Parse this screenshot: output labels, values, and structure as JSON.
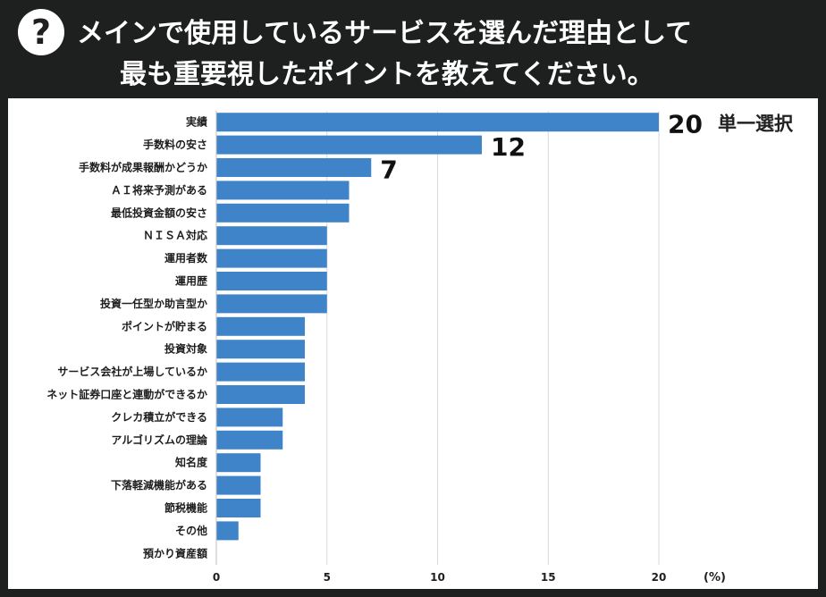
{
  "header": {
    "icon": "question-mark-icon",
    "icon_glyph": "?",
    "title_line1": "メインで使用しているサービスを選んだ理由として",
    "title_line2": "最も重要視したポイントを教えてください。"
  },
  "chart_data": {
    "type": "bar",
    "orientation": "horizontal",
    "categories": [
      "実績",
      "手数料の安さ",
      "手数料が成果報酬かどうか",
      "ＡＩ将来予測がある",
      "最低投資金額の安さ",
      "ＮＩＳＡ対応",
      "運用者数",
      "運用歴",
      "投資一任型か助言型か",
      "ポイントが貯まる",
      "投資対象",
      "サービス会社が上場しているか",
      "ネット証券口座と連動ができるか",
      "クレカ積立ができる",
      "アルゴリズムの理論",
      "知名度",
      "下落軽減機能がある",
      "節税機能",
      "その他",
      "預かり資産額"
    ],
    "values": [
      20,
      12,
      7,
      6,
      6,
      5,
      5,
      5,
      5,
      4,
      4,
      4,
      4,
      3,
      3,
      2,
      2,
      2,
      1,
      0
    ],
    "data_labels": [
      {
        "index": 0,
        "text": "20"
      },
      {
        "index": 1,
        "text": "12"
      },
      {
        "index": 2,
        "text": "7"
      }
    ],
    "annotation": "単一選択",
    "xlim": [
      0,
      20
    ],
    "xticks": [
      "0",
      "5",
      "10",
      "15",
      "20"
    ],
    "xunit": "(%)",
    "grid": true,
    "bar_color": "#3f84c8",
    "grid_color": "#d9d9d9"
  }
}
